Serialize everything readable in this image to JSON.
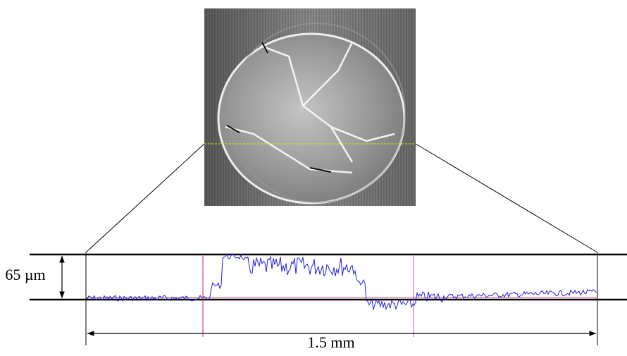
{
  "labels": {
    "height": "65 µm",
    "width": "1.5 mm"
  }
}
